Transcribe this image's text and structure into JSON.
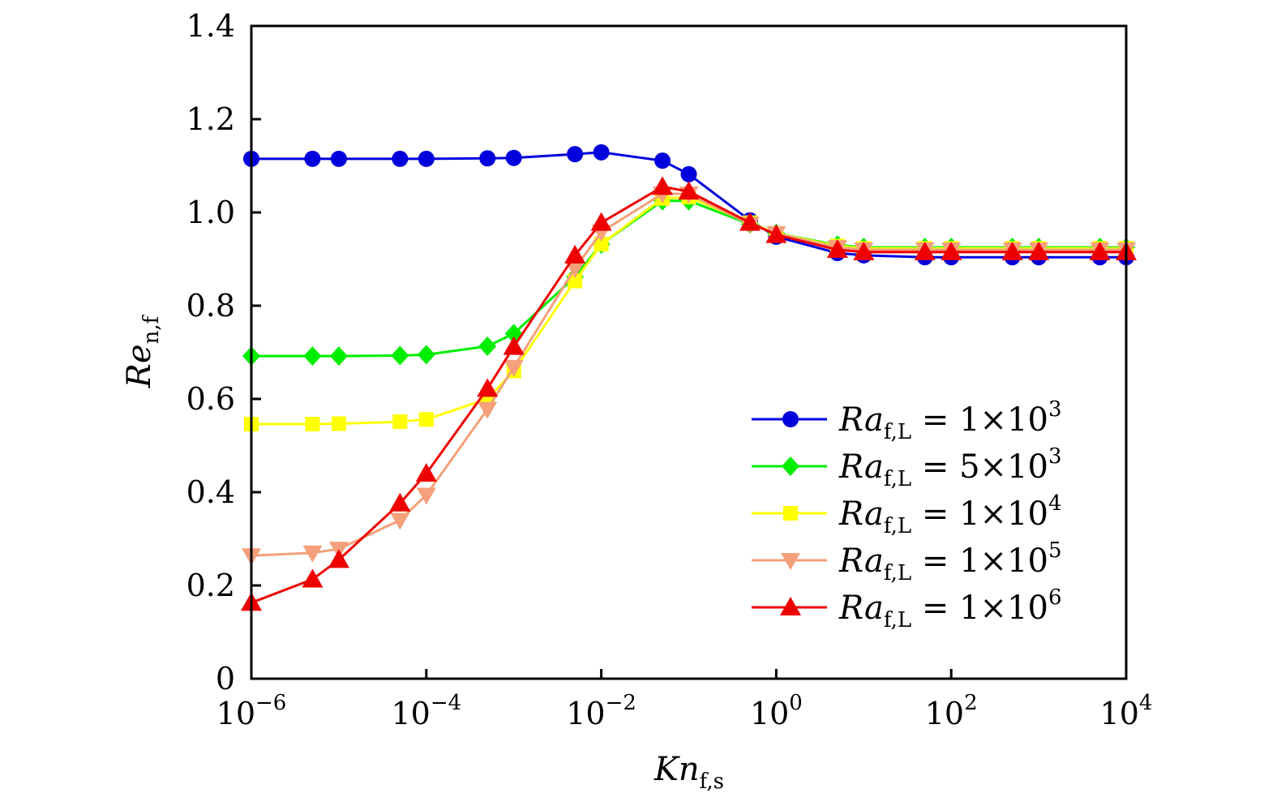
{
  "chart_data": {
    "type": "line",
    "title": "",
    "xlabel": "Kn",
    "xlabel_sub": "f,s",
    "ylabel": "Re",
    "ylabel_sub": "n,f",
    "xscale": "log",
    "xlim": [
      1e-06,
      10000.0
    ],
    "ylim": [
      0,
      1.4
    ],
    "grid": false,
    "legend_position": "center-right",
    "x_ticks": [
      {
        "value": 1e-06,
        "base": "10",
        "exp": "−6"
      },
      {
        "value": 0.0001,
        "base": "10",
        "exp": "−4"
      },
      {
        "value": 0.01,
        "base": "10",
        "exp": "−2"
      },
      {
        "value": 1,
        "base": "10",
        "exp": "0"
      },
      {
        "value": 100.0,
        "base": "10",
        "exp": "2"
      },
      {
        "value": 10000.0,
        "base": "10",
        "exp": "4"
      }
    ],
    "y_ticks": [
      {
        "value": 0,
        "label": "0"
      },
      {
        "value": 0.2,
        "label": "0.2"
      },
      {
        "value": 0.4,
        "label": "0.4"
      },
      {
        "value": 0.6,
        "label": "0.6"
      },
      {
        "value": 0.8,
        "label": "0.8"
      },
      {
        "value": 1.0,
        "label": "1.0"
      },
      {
        "value": 1.2,
        "label": "1.2"
      },
      {
        "value": 1.4,
        "label": "1.4"
      }
    ],
    "x": [
      1e-06,
      5e-06,
      1e-05,
      5e-05,
      0.0001,
      0.0005,
      0.001,
      0.005,
      0.01,
      0.05,
      0.1,
      0.5,
      1,
      5,
      10,
      50,
      100,
      500,
      1000,
      5000,
      10000
    ],
    "series": [
      {
        "name": "Ra_f,L = 1×10^3",
        "legend_var": "Ra",
        "legend_sub": "f,L",
        "legend_eq": "= 1×10",
        "legend_exp": "3",
        "color": "#0000dd",
        "marker": "circle",
        "values": [
          1.115,
          1.115,
          1.115,
          1.115,
          1.115,
          1.116,
          1.117,
          1.125,
          1.129,
          1.111,
          1.082,
          0.983,
          0.948,
          0.913,
          0.908,
          0.904,
          0.904,
          0.904,
          0.904,
          0.904,
          0.904
        ]
      },
      {
        "name": "Ra_f,L = 5×10^3",
        "legend_var": "Ra",
        "legend_sub": "f,L",
        "legend_eq": "= 5×10",
        "legend_exp": "3",
        "color": "#00ee00",
        "marker": "diamond",
        "values": [
          0.692,
          0.692,
          0.692,
          0.693,
          0.695,
          0.713,
          0.74,
          0.862,
          0.932,
          1.025,
          1.025,
          0.975,
          0.955,
          0.93,
          0.925,
          0.925,
          0.925,
          0.925,
          0.925,
          0.925,
          0.925
        ]
      },
      {
        "name": "Ra_f,L = 1×10^4",
        "legend_var": "Ra",
        "legend_sub": "f,L",
        "legend_eq": "= 1×10",
        "legend_exp": "4",
        "color": "#ffff00",
        "marker": "square",
        "values": [
          0.546,
          0.546,
          0.547,
          0.551,
          0.556,
          0.6,
          0.66,
          0.853,
          0.932,
          1.03,
          1.033,
          0.978,
          0.955,
          0.928,
          0.923,
          0.923,
          0.923,
          0.923,
          0.923,
          0.923,
          0.923
        ]
      },
      {
        "name": "Ra_f,L = 1×10^5",
        "legend_var": "Ra",
        "legend_sub": "f,L",
        "legend_eq": "= 1×10",
        "legend_exp": "5",
        "color": "#f4a07a",
        "marker": "triangle-down",
        "values": [
          0.264,
          0.27,
          0.278,
          0.34,
          0.394,
          0.578,
          0.668,
          0.88,
          0.958,
          1.04,
          1.04,
          0.975,
          0.955,
          0.925,
          0.92,
          0.92,
          0.92,
          0.92,
          0.92,
          0.92,
          0.92
        ]
      },
      {
        "name": "Ra_f,L = 1×10^6",
        "legend_var": "Ra",
        "legend_sub": "f,L",
        "legend_eq": "= 1×10",
        "legend_exp": "6",
        "color": "#ee0000",
        "marker": "triangle-up",
        "values": [
          0.163,
          0.213,
          0.255,
          0.376,
          0.44,
          0.622,
          0.712,
          0.908,
          0.978,
          1.055,
          1.045,
          0.978,
          0.952,
          0.92,
          0.915,
          0.915,
          0.915,
          0.915,
          0.915,
          0.915,
          0.915
        ]
      }
    ]
  }
}
